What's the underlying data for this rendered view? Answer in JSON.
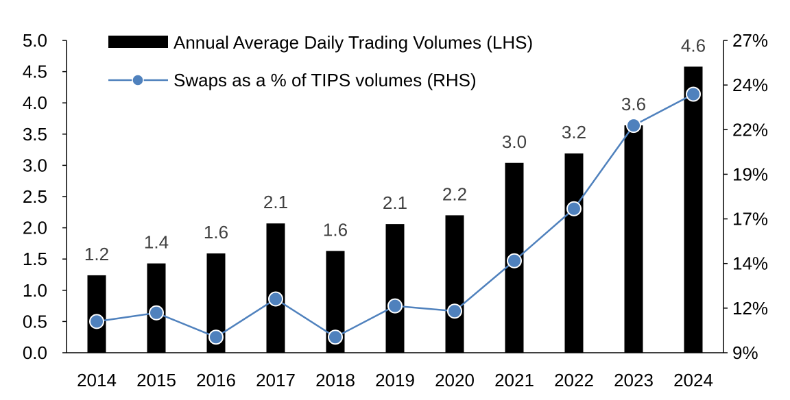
{
  "chart_data": {
    "type": "bar+line",
    "categories": [
      "2014",
      "2015",
      "2016",
      "2017",
      "2018",
      "2019",
      "2020",
      "2021",
      "2022",
      "2023",
      "2024"
    ],
    "series": [
      {
        "name": "Annual Average Daily Trading Volumes (LHS)",
        "type": "bar",
        "axis": "left",
        "color": "#000000",
        "values": [
          1.24,
          1.43,
          1.59,
          2.07,
          1.63,
          2.06,
          2.2,
          3.04,
          3.19,
          3.64,
          4.58
        ],
        "data_labels": [
          "1.2",
          "1.4",
          "1.6",
          "2.1",
          "1.6",
          "2.1",
          "2.2",
          "3.0",
          "3.2",
          "3.6",
          "4.6"
        ]
      },
      {
        "name": "Swaps as a % of TIPS volumes (RHS)",
        "type": "line",
        "axis": "right",
        "color": "#4F81BD",
        "values": [
          10.8,
          11.3,
          9.9,
          12.1,
          9.9,
          11.7,
          11.4,
          14.3,
          17.3,
          22.1,
          23.9
        ]
      }
    ],
    "y_left": {
      "range": [
        0,
        5
      ],
      "ticks": [
        "0.0",
        "0.5",
        "1.0",
        "1.5",
        "2.0",
        "2.5",
        "3.0",
        "3.5",
        "4.0",
        "4.5",
        "5.0"
      ]
    },
    "y_right": {
      "range": [
        9,
        27
      ],
      "ticks": [
        "9%",
        "12%",
        "14%",
        "17%",
        "19%",
        "22%",
        "24%",
        "27%"
      ]
    },
    "legend_placement": "top-left",
    "grid": false
  }
}
